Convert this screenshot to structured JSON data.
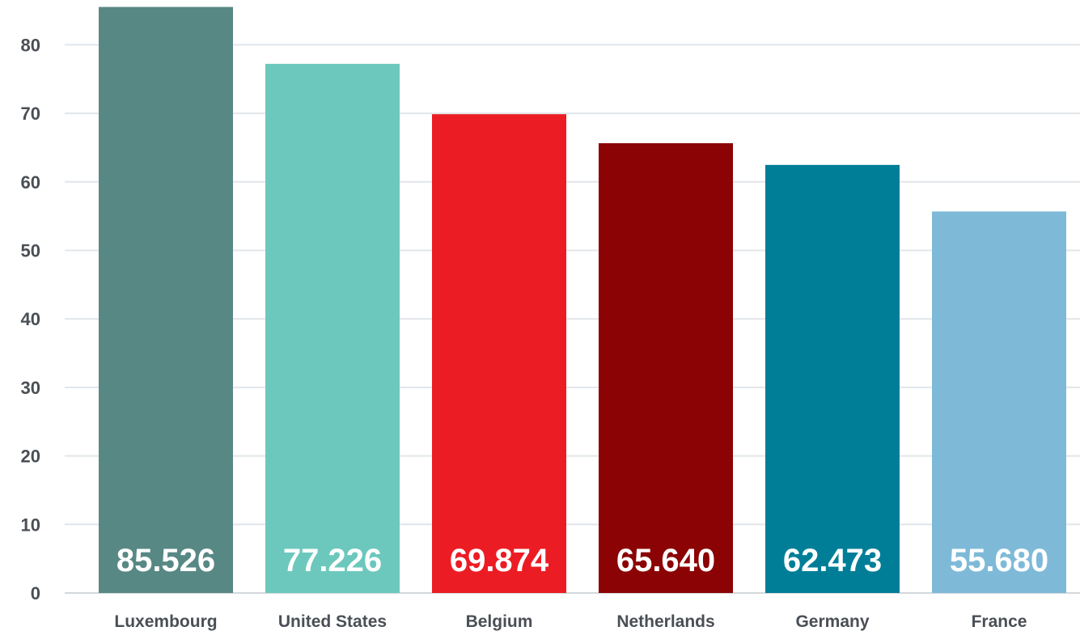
{
  "chart_data": {
    "type": "bar",
    "title": "",
    "xlabel": "",
    "ylabel": "",
    "categories": [
      "Luxembourg",
      "United States",
      "Belgium",
      "Netherlands",
      "Germany",
      "France"
    ],
    "values": [
      85.526,
      77.226,
      69.874,
      65.64,
      62.473,
      55.68
    ],
    "value_labels": [
      "85.526",
      "77.226",
      "69.874",
      "65.640",
      "62.473",
      "55.680"
    ],
    "colors": [
      "#588884",
      "#6cc8bc",
      "#ec1c24",
      "#8b0304",
      "#007e98",
      "#7ebad8"
    ],
    "ylim": [
      0,
      85
    ],
    "yticks": [
      0,
      10,
      20,
      30,
      40,
      50,
      60,
      70,
      80
    ],
    "grid": true,
    "legend": "none"
  }
}
